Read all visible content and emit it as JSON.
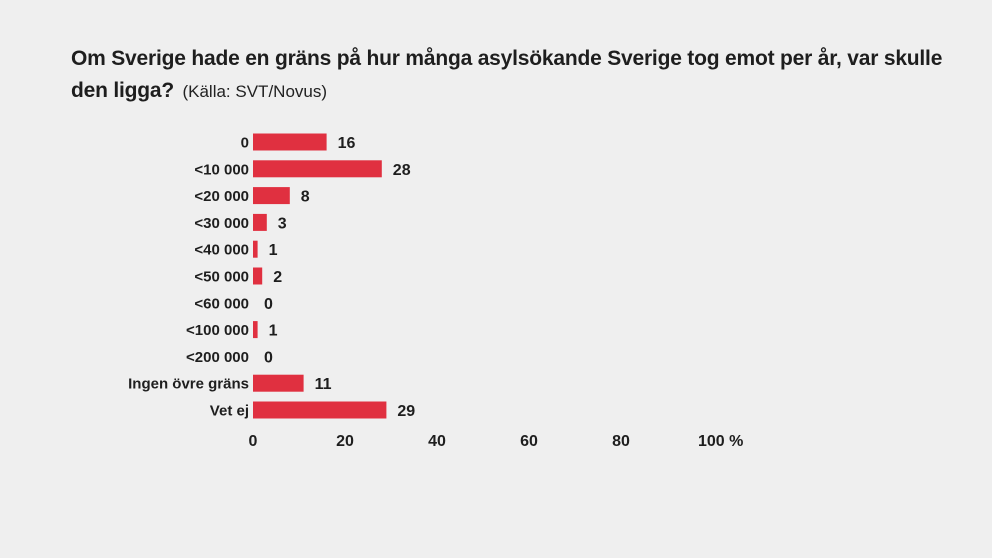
{
  "header": {
    "title": "Om Sverige hade en gräns på hur många asylsökande Sverige tog emot per år, var skulle den ligga?",
    "source": "(Källa: SVT/Novus)"
  },
  "colors": {
    "background": "#efefef",
    "bar": "#e03040",
    "text": "#1e1e1e"
  },
  "chart_data": {
    "type": "bar",
    "orientation": "horizontal",
    "title": "Om Sverige hade en gräns på hur många asylsökande Sverige tog emot per år, var skulle den ligga?",
    "subtitle": "(Källa: SVT/Novus)",
    "categories": [
      "0",
      "<10 000",
      "<20 000",
      "<30 000",
      "<40 000",
      "<50 000",
      "<60 000",
      "<100 000",
      "<200 000",
      "Ingen övre gräns",
      "Vet ej"
    ],
    "values": [
      16,
      28,
      8,
      3,
      1,
      2,
      0,
      1,
      0,
      11,
      29
    ],
    "xlim": [
      0,
      100
    ],
    "x_ticks": [
      0,
      20,
      40,
      60,
      80,
      100
    ],
    "x_tick_labels": [
      "0",
      "20",
      "40",
      "60",
      "80",
      "100 %"
    ],
    "grid": false,
    "legend": "none"
  }
}
